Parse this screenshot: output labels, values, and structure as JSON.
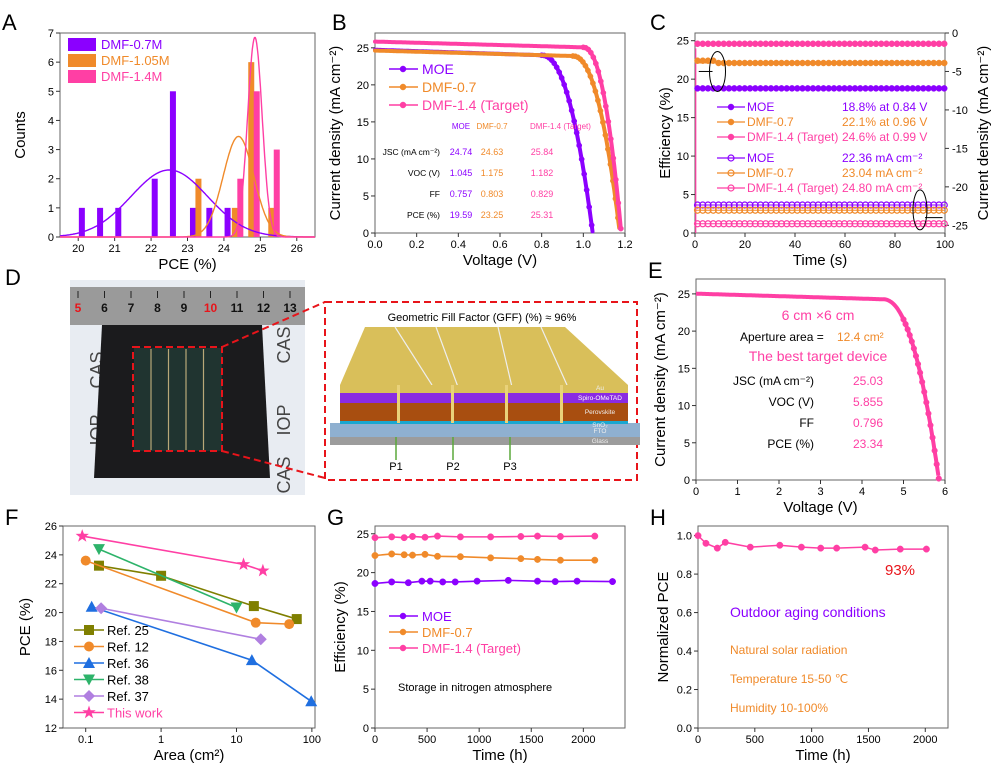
{
  "colors": {
    "purple": "#8B00FF",
    "orange": "#F08A2A",
    "pink": "#FF3FA4",
    "olive": "#7F7F00",
    "blue": "#1F6FE0",
    "green": "#2DB36A",
    "lavender": "#B07FE0",
    "red": "#E8141A",
    "black": "#000000"
  },
  "chart_data": [
    {
      "panel": "A",
      "type": "bar",
      "title": "",
      "xlabel": "PCE (%)",
      "ylabel": "Counts",
      "xlim": [
        19.5,
        26.5
      ],
      "ylim": [
        0,
        7
      ],
      "xticks": [
        "20",
        "21",
        "22",
        "23",
        "24",
        "25",
        "26"
      ],
      "yticks": [
        "0",
        "1",
        "2",
        "3",
        "4",
        "5",
        "6",
        "7"
      ],
      "series": [
        {
          "name": "DMF-0.7M",
          "color": "purple",
          "x": [
            20.1,
            20.6,
            21.1,
            22.1,
            22.6,
            23.15,
            23.6,
            24.1
          ],
          "values": [
            1,
            1,
            1,
            2,
            5,
            1,
            1,
            1
          ],
          "fit": {
            "mean": 22.5,
            "sd": 1.05,
            "peak": 2.3
          }
        },
        {
          "name": "DMF-1.05M",
          "color": "orange",
          "x": [
            23.3,
            24.3,
            24.75,
            25.3
          ],
          "values": [
            2,
            1,
            6,
            1
          ],
          "fit": {
            "mean": 24.4,
            "sd": 0.42,
            "peak": 3.45
          }
        },
        {
          "name": "DMF-1.4M",
          "color": "pink",
          "x": [
            24.45,
            24.9,
            25.45
          ],
          "values": [
            2,
            5,
            3
          ],
          "fit": {
            "mean": 24.85,
            "sd": 0.2,
            "peak": 6.85
          }
        }
      ]
    },
    {
      "panel": "B",
      "type": "line",
      "xlabel": "Voltage (V)",
      "ylabel": "Current density (mA cm⁻²)",
      "xlim": [
        0,
        1.2
      ],
      "ylim": [
        0,
        27
      ],
      "xticks": [
        "0.0",
        "0.2",
        "0.4",
        "0.6",
        "0.8",
        "1.0",
        "1.2"
      ],
      "yticks": [
        "0",
        "5",
        "10",
        "15",
        "20",
        "25"
      ],
      "series": [
        {
          "name": "MOE",
          "color": "purple",
          "jsc": 24.74,
          "voc": 1.045,
          "knee": 0.8
        },
        {
          "name": "DMF-0.7",
          "color": "orange",
          "jsc": 24.63,
          "voc": 1.175,
          "knee": 0.95
        },
        {
          "name": "DMF-1.4 (Target)",
          "color": "pink",
          "jsc": 25.84,
          "voc": 1.182,
          "knee": 1.0
        }
      ],
      "table": {
        "headers": [
          "MOE",
          "DMF-0.7",
          "DMF-1.4 (Target)"
        ],
        "rows": [
          {
            "label": "J_SC (mA cm⁻²)",
            "values": [
              "24.74",
              "24.63",
              "25.84"
            ]
          },
          {
            "label": "V_OC (V)",
            "values": [
              "1.045",
              "1.175",
              "1.182"
            ]
          },
          {
            "label": "FF",
            "values": [
              "0.757",
              "0.803",
              "0.829"
            ]
          },
          {
            "label": "PCE (%)",
            "values": [
              "19.59",
              "23.25",
              "25.31"
            ]
          }
        ]
      }
    },
    {
      "panel": "C",
      "type": "line",
      "xlabel": "Time (s)",
      "ylabel": "Efficiency (%)",
      "ylabel_right": "Current density (mA cm⁻²)",
      "xlim": [
        0,
        100
      ],
      "ylim": [
        0,
        26
      ],
      "ylim_right": [
        -26,
        0
      ],
      "xticks": [
        "0",
        "20",
        "40",
        "60",
        "80",
        "100"
      ],
      "yticks": [
        "0",
        "5",
        "10",
        "15",
        "20",
        "25"
      ],
      "yticks_right": [
        "0",
        "-5",
        "-10",
        "-15",
        "-20",
        "-25"
      ],
      "series": [
        {
          "name": "MOE",
          "color": "purple",
          "kind": "efficiency",
          "value": 18.8,
          "label": "18.8% at 0.84 V"
        },
        {
          "name": "DMF-0.7",
          "color": "orange",
          "kind": "efficiency",
          "value": 22.1,
          "label": "22.1% at 0.96 V"
        },
        {
          "name": "DMF-1.4 (Target)",
          "color": "pink",
          "kind": "efficiency",
          "value": 24.6,
          "label": "24.6% at 0.99 V"
        },
        {
          "name": "MOE",
          "color": "purple",
          "kind": "current",
          "value": -22.36,
          "label": "22.36 mA cm⁻²"
        },
        {
          "name": "DMF-0.7",
          "color": "orange",
          "kind": "current",
          "value": -23.04,
          "label": "23.04 mA cm⁻²"
        },
        {
          "name": "DMF-1.4 (Target)",
          "color": "pink",
          "kind": "current",
          "value": -24.8,
          "label": "24.80 mA cm⁻²"
        }
      ]
    },
    {
      "panel": "E",
      "type": "line",
      "xlabel": "Voltage (V)",
      "ylabel": "Current density (mA cm⁻²)",
      "xlim": [
        0,
        6
      ],
      "ylim": [
        0,
        27
      ],
      "xticks": [
        "0",
        "1",
        "2",
        "3",
        "4",
        "5",
        "6"
      ],
      "yticks": [
        "0",
        "5",
        "10",
        "15",
        "20",
        "25"
      ],
      "series": [
        {
          "name": "Target",
          "color": "pink",
          "jsc": 25.03,
          "voc": 5.855,
          "knee": 4.5
        }
      ],
      "annotations": {
        "size": "6 cm ×6 cm",
        "aperture_label": "Aperture area = ",
        "aperture_value": "12.4 cm²",
        "best": "The best target device",
        "rows": [
          {
            "label": "J_SC (mA cm⁻²)",
            "value": "25.03"
          },
          {
            "label": "V_OC (V)",
            "value": "5.855"
          },
          {
            "label": "FF",
            "value": "0.796"
          },
          {
            "label": "PCE (%)",
            "value": "23.34"
          }
        ]
      }
    },
    {
      "panel": "F",
      "type": "line",
      "xscale": "log",
      "xlabel": "Area (cm²)",
      "ylabel": "PCE (%)",
      "xlim": [
        0.05,
        110
      ],
      "ylim": [
        12,
        26
      ],
      "xticks": [
        "0.1",
        "1",
        "10",
        "100"
      ],
      "yticks": [
        "12",
        "14",
        "16",
        "18",
        "20",
        "22",
        "24",
        "26"
      ],
      "series": [
        {
          "name": "Ref. 25",
          "color": "olive",
          "marker": "square",
          "x": [
            0.15,
            1,
            17,
            63
          ],
          "y": [
            23.25,
            22.55,
            20.45,
            19.55
          ]
        },
        {
          "name": "Ref. 12",
          "color": "orange",
          "marker": "circle",
          "x": [
            0.1,
            18,
            50
          ],
          "y": [
            23.6,
            19.3,
            19.2
          ]
        },
        {
          "name": "Ref. 36",
          "color": "blue",
          "marker": "triangle-up",
          "x": [
            0.12,
            16,
            98
          ],
          "y": [
            20.4,
            16.7,
            13.85
          ]
        },
        {
          "name": "Ref. 38",
          "color": "green",
          "marker": "triangle-down",
          "x": [
            0.15,
            10
          ],
          "y": [
            24.4,
            20.35
          ]
        },
        {
          "name": "Ref. 37",
          "color": "lavender",
          "marker": "diamond",
          "x": [
            0.16,
            21
          ],
          "y": [
            20.3,
            18.15
          ]
        },
        {
          "name": "This work",
          "color": "pink",
          "marker": "star",
          "x": [
            0.09,
            12.4,
            22.4
          ],
          "y": [
            25.3,
            23.34,
            22.9
          ]
        }
      ]
    },
    {
      "panel": "G",
      "type": "line",
      "xlabel": "Time (h)",
      "ylabel": "Efficiency (%)",
      "xlim": [
        0,
        2400
      ],
      "ylim": [
        0,
        26
      ],
      "xticks": [
        "0",
        "500",
        "1000",
        "1500",
        "2000"
      ],
      "yticks": [
        "0",
        "5",
        "10",
        "15",
        "20",
        "25"
      ],
      "annotation": "Storage in nitrogen atmosphere",
      "series": [
        {
          "name": "MOE",
          "color": "purple",
          "x": [
            0,
            160,
            320,
            450,
            530,
            650,
            770,
            980,
            1280,
            1560,
            1730,
            1940,
            2280
          ],
          "y": [
            18.6,
            18.8,
            18.7,
            18.9,
            18.9,
            18.8,
            18.8,
            18.9,
            19.0,
            18.9,
            18.85,
            18.9,
            18.85
          ]
        },
        {
          "name": "DMF-0.7",
          "color": "orange",
          "x": [
            0,
            160,
            280,
            360,
            480,
            600,
            820,
            1110,
            1400,
            1560,
            1780,
            2110
          ],
          "y": [
            22.2,
            22.4,
            22.3,
            22.25,
            22.35,
            22.1,
            22.05,
            21.9,
            21.8,
            21.7,
            21.6,
            21.6
          ]
        },
        {
          "name": "DMF-1.4 (Target)",
          "color": "pink",
          "x": [
            0,
            160,
            280,
            360,
            480,
            600,
            820,
            1110,
            1400,
            1560,
            1780,
            2110
          ],
          "y": [
            24.5,
            24.6,
            24.5,
            24.65,
            24.55,
            24.7,
            24.6,
            24.6,
            24.65,
            24.7,
            24.65,
            24.7
          ]
        }
      ]
    },
    {
      "panel": "H",
      "type": "line",
      "xlabel": "Time (h)",
      "ylabel": "Normalized PCE",
      "xlim": [
        0,
        2200
      ],
      "ylim": [
        0,
        1.05
      ],
      "xticks": [
        "0",
        "500",
        "1000",
        "1500",
        "2000"
      ],
      "yticks": [
        "0.0",
        "0.2",
        "0.4",
        "0.6",
        "0.8",
        "1.0"
      ],
      "series": [
        {
          "name": "Outdoor",
          "color": "pink",
          "x": [
            0,
            70,
            170,
            240,
            460,
            720,
            910,
            1080,
            1220,
            1470,
            1560,
            1780,
            2010
          ],
          "y": [
            1.0,
            0.96,
            0.935,
            0.965,
            0.94,
            0.95,
            0.94,
            0.935,
            0.935,
            0.94,
            0.925,
            0.93,
            0.93
          ]
        }
      ],
      "annotations": {
        "retention": "93%",
        "title": "Outdoor aging conditions",
        "lines": [
          "Natural solar radiation",
          "Temperature 15-50 ℃",
          "Humidity 10-100%"
        ]
      }
    }
  ],
  "panel_labels": [
    "A",
    "B",
    "C",
    "D",
    "E",
    "F",
    "G",
    "H"
  ],
  "panel_d": {
    "ruler_numbers": [
      "5",
      "6",
      "7",
      "8",
      "9",
      "10",
      "11",
      "12",
      "13"
    ],
    "ruler_red": [
      "5",
      "10"
    ],
    "watermark": [
      "CAS",
      "IOP",
      "CAS"
    ],
    "gff": "Geometric Fill Factor (GFF) (%) ≈ 96%",
    "layers": [
      "Au",
      "Spiro-OMeTAD",
      "Perovskite",
      "SnO₂",
      "FTO",
      "Glass"
    ],
    "scribes": [
      "P1",
      "P2",
      "P3"
    ]
  }
}
